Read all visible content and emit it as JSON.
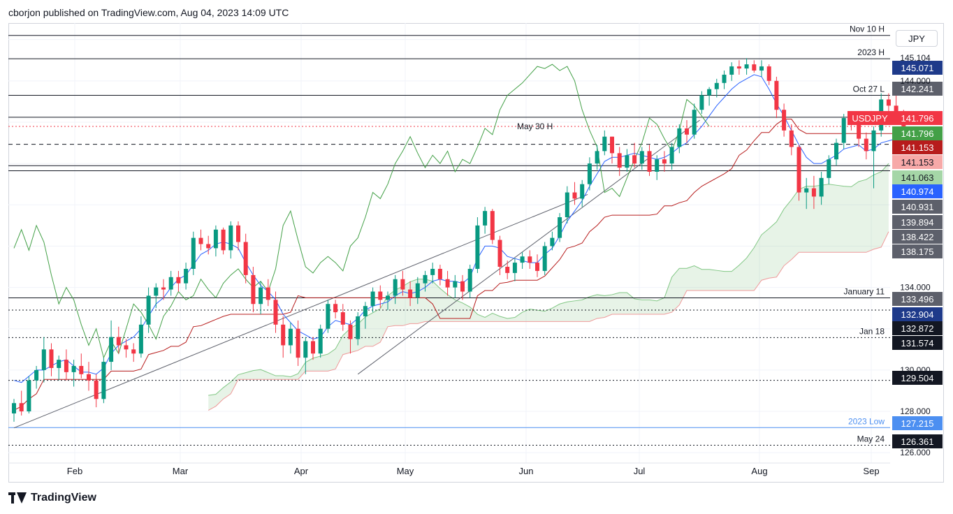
{
  "header": {
    "published": "cborjon published on TradingView.com, Aug 04, 2023 14:09 UTC"
  },
  "footer": {
    "brand": "TradingView"
  },
  "currency": "JPY",
  "colors": {
    "up": "#089981",
    "down": "#f23645",
    "kijun": "#b71c1c",
    "tenkan": "#2962ff",
    "lagging": "#43a047",
    "cloud_up": "#43a047",
    "cloud_down": "#f23645"
  },
  "chart_data": {
    "type": "candlestick",
    "symbol": "USDJPY",
    "timeframe": "daily",
    "indicator": "Ichimoku Cloud",
    "ylim": [
      125.5,
      146.8
    ],
    "x_tick_labels": [
      "Feb",
      "Mar",
      "Apr",
      "May",
      "Jun",
      "Jul",
      "Aug",
      "Sep"
    ],
    "y_tick_labels": [
      128.0,
      130.0,
      134.0,
      144.0
    ],
    "y_partial_labels": [
      {
        "value": 145.104,
        "label": "145.104"
      },
      {
        "value": 126.0,
        "label": "126.000"
      }
    ],
    "price_labels": [
      {
        "label": "145.071",
        "bg": "#1e3a8a",
        "fg": "#ffffff",
        "value": 145.071
      },
      {
        "label": "142.241",
        "bg": "#5d606b",
        "fg": "#ffffff",
        "value": 142.241
      },
      {
        "label": "141.796",
        "bg": "#f23645",
        "fg": "#ffffff",
        "value": 141.796,
        "tag": "USDJPY"
      },
      {
        "label": "141.796",
        "bg": "#43a047",
        "fg": "#ffffff",
        "value": 141.796
      },
      {
        "label": "141.153",
        "bg": "#b71c1c",
        "fg": "#ffffff",
        "value": 141.153
      },
      {
        "label": "141.153",
        "bg": "#f7a9a8",
        "fg": "#131722",
        "value": 141.153
      },
      {
        "label": "141.063",
        "bg": "#a5d6a7",
        "fg": "#131722",
        "value": 141.063
      },
      {
        "label": "140.974",
        "bg": "#2962ff",
        "fg": "#ffffff",
        "value": 140.974
      },
      {
        "label": "140.931",
        "bg": "#5d606b",
        "fg": "#ffffff",
        "value": 140.931
      },
      {
        "label": "139.894",
        "bg": "#5d606b",
        "fg": "#ffffff",
        "value": 139.894
      },
      {
        "label": "138.422",
        "bg": "#5d606b",
        "fg": "#ffffff",
        "value": 138.422
      },
      {
        "label": "138.175",
        "bg": "#5d606b",
        "fg": "#ffffff",
        "value": 138.175
      },
      {
        "label": "133.496",
        "bg": "#5d606b",
        "fg": "#ffffff",
        "value": 133.496
      },
      {
        "label": "132.904",
        "bg": "#1e3a8a",
        "fg": "#ffffff",
        "value": 132.904
      },
      {
        "label": "132.872",
        "bg": "#131722",
        "fg": "#ffffff",
        "value": 132.872
      },
      {
        "label": "131.574",
        "bg": "#131722",
        "fg": "#ffffff",
        "value": 131.574
      },
      {
        "label": "129.504",
        "bg": "#131722",
        "fg": "#ffffff",
        "value": 129.504
      },
      {
        "label": "127.215",
        "bg": "#4c8ff1",
        "fg": "#ffffff",
        "value": 127.215
      },
      {
        "label": "126.361",
        "bg": "#131722",
        "fg": "#ffffff",
        "value": 126.361
      }
    ],
    "horizontal_lines": [
      {
        "value": 146.2,
        "label": "Nov 10 H",
        "style": "solid",
        "color": "#131722"
      },
      {
        "value": 145.071,
        "label": "2023 H",
        "style": "solid",
        "color": "#131722"
      },
      {
        "value": 143.3,
        "label": "Oct 27 L",
        "style": "solid",
        "color": "#131722"
      },
      {
        "value": 141.796,
        "label": "",
        "style": "dotted",
        "color": "#f23645"
      },
      {
        "value": 142.241,
        "label": "",
        "style": "solid",
        "color": "#131722"
      },
      {
        "value": 140.931,
        "label": "",
        "style": "dashed",
        "color": "#131722"
      },
      {
        "value": 139.894,
        "label": "",
        "style": "solid",
        "color": "#131722"
      },
      {
        "value": 139.65,
        "label": "",
        "style": "solid",
        "color": "#131722"
      },
      {
        "value": 133.496,
        "label": "January 11",
        "style": "solid",
        "color": "#131722"
      },
      {
        "value": 132.904,
        "label": "",
        "style": "dotted",
        "color": "#131722"
      },
      {
        "value": 131.574,
        "label": "Jan 18",
        "style": "dotted",
        "color": "#131722"
      },
      {
        "value": 129.504,
        "label": "",
        "style": "dotted",
        "color": "#131722"
      },
      {
        "value": 127.215,
        "label": "2023 Low",
        "style": "solid",
        "color": "#4c8ff1"
      },
      {
        "value": 126.361,
        "label": "May 24",
        "style": "dotted",
        "color": "#131722"
      }
    ],
    "annotations": [
      {
        "label": "May 30 H",
        "value": 141.6
      }
    ],
    "trendlines": [
      {
        "from": [
          0,
          127.2
        ],
        "to": [
          73,
          138.4
        ]
      },
      {
        "from": [
          46,
          129.8
        ],
        "to": [
          88,
          142.0
        ]
      }
    ],
    "candles": [
      [
        127.9,
        128.6,
        127.5,
        128.4
      ],
      [
        128.4,
        129.0,
        127.8,
        128.0
      ],
      [
        128.0,
        129.7,
        127.9,
        129.5
      ],
      [
        129.5,
        130.2,
        129.1,
        130.0
      ],
      [
        130.0,
        131.6,
        129.4,
        131.0
      ],
      [
        131.0,
        131.3,
        129.7,
        130.1
      ],
      [
        130.1,
        130.7,
        129.5,
        130.5
      ],
      [
        130.5,
        131.0,
        129.5,
        129.9
      ],
      [
        129.9,
        130.5,
        129.2,
        130.2
      ],
      [
        130.2,
        130.8,
        129.6,
        129.8
      ],
      [
        129.8,
        130.4,
        129.0,
        129.5
      ],
      [
        129.5,
        129.8,
        128.2,
        128.6
      ],
      [
        128.6,
        130.6,
        128.4,
        130.4
      ],
      [
        130.4,
        132.4,
        130.0,
        131.6
      ],
      [
        131.6,
        132.1,
        130.8,
        131.2
      ],
      [
        131.2,
        131.5,
        130.6,
        131.0
      ],
      [
        131.0,
        131.3,
        130.4,
        130.8
      ],
      [
        130.8,
        132.6,
        130.6,
        132.2
      ],
      [
        132.2,
        134.0,
        131.8,
        133.6
      ],
      [
        133.6,
        134.2,
        133.0,
        134.0
      ],
      [
        134.0,
        134.4,
        133.4,
        133.9
      ],
      [
        133.9,
        134.8,
        133.6,
        134.5
      ],
      [
        134.5,
        134.8,
        133.8,
        134.2
      ],
      [
        134.2,
        135.2,
        133.9,
        134.9
      ],
      [
        134.9,
        136.7,
        134.6,
        136.4
      ],
      [
        136.4,
        136.8,
        135.8,
        136.1
      ],
      [
        136.1,
        136.5,
        135.6,
        135.9
      ],
      [
        135.9,
        137.0,
        135.5,
        136.8
      ],
      [
        136.8,
        136.9,
        135.6,
        135.8
      ],
      [
        135.8,
        137.2,
        135.4,
        137.0
      ],
      [
        137.0,
        137.2,
        135.8,
        136.2
      ],
      [
        136.2,
        136.6,
        134.2,
        134.6
      ],
      [
        134.6,
        135.0,
        132.8,
        133.2
      ],
      [
        133.2,
        134.3,
        132.7,
        134.0
      ],
      [
        134.0,
        134.4,
        133.1,
        133.4
      ],
      [
        133.4,
        133.8,
        131.8,
        132.2
      ],
      [
        132.2,
        132.6,
        130.6,
        131.2
      ],
      [
        131.2,
        132.3,
        130.8,
        132.0
      ],
      [
        132.0,
        132.4,
        130.2,
        130.6
      ],
      [
        130.6,
        131.6,
        129.8,
        131.4
      ],
      [
        131.4,
        131.6,
        130.5,
        130.8
      ],
      [
        130.8,
        132.2,
        130.6,
        132.0
      ],
      [
        132.0,
        133.4,
        131.8,
        133.2
      ],
      [
        133.2,
        133.4,
        132.5,
        132.8
      ],
      [
        132.8,
        133.2,
        131.9,
        132.2
      ],
      [
        132.2,
        132.4,
        130.8,
        131.5
      ],
      [
        131.5,
        132.8,
        131.2,
        132.6
      ],
      [
        132.6,
        133.3,
        132.0,
        133.1
      ],
      [
        133.1,
        134.0,
        132.8,
        133.8
      ],
      [
        133.8,
        134.1,
        133.0,
        133.4
      ],
      [
        133.4,
        133.8,
        132.9,
        133.6
      ],
      [
        133.6,
        134.6,
        133.2,
        134.4
      ],
      [
        134.4,
        134.8,
        133.6,
        133.9
      ],
      [
        133.9,
        134.3,
        133.1,
        133.5
      ],
      [
        133.5,
        134.5,
        133.2,
        134.2
      ],
      [
        134.2,
        134.8,
        133.8,
        134.6
      ],
      [
        134.6,
        135.2,
        134.2,
        134.9
      ],
      [
        134.9,
        135.1,
        134.1,
        134.4
      ],
      [
        134.4,
        134.8,
        133.6,
        134.0
      ],
      [
        134.0,
        134.6,
        133.5,
        134.3
      ],
      [
        134.3,
        134.6,
        133.4,
        133.8
      ],
      [
        133.8,
        135.1,
        133.5,
        134.9
      ],
      [
        134.9,
        137.4,
        134.7,
        137.0
      ],
      [
        137.0,
        137.9,
        136.6,
        137.7
      ],
      [
        137.7,
        137.8,
        136.1,
        136.3
      ],
      [
        136.3,
        136.5,
        134.6,
        135.0
      ],
      [
        135.0,
        135.3,
        134.4,
        134.7
      ],
      [
        134.7,
        135.4,
        134.3,
        135.2
      ],
      [
        135.2,
        135.7,
        134.9,
        135.5
      ],
      [
        135.5,
        135.8,
        134.9,
        135.2
      ],
      [
        135.2,
        135.6,
        134.5,
        134.8
      ],
      [
        134.8,
        136.2,
        134.6,
        136.0
      ],
      [
        136.0,
        136.7,
        135.8,
        136.4
      ],
      [
        136.4,
        137.6,
        136.2,
        137.4
      ],
      [
        137.4,
        138.9,
        137.1,
        138.6
      ],
      [
        138.6,
        139.1,
        138.0,
        138.3
      ],
      [
        138.3,
        139.2,
        137.9,
        139.0
      ],
      [
        139.0,
        140.3,
        138.7,
        140.0
      ],
      [
        140.0,
        140.9,
        139.7,
        140.6
      ],
      [
        140.6,
        141.6,
        140.4,
        141.3
      ],
      [
        141.3,
        141.3,
        140.0,
        140.5
      ],
      [
        140.5,
        140.8,
        139.4,
        139.8
      ],
      [
        139.8,
        140.7,
        139.6,
        140.4
      ],
      [
        140.4,
        141.0,
        139.8,
        140.0
      ],
      [
        140.0,
        140.8,
        139.7,
        140.6
      ],
      [
        140.6,
        140.9,
        139.4,
        139.6
      ],
      [
        139.6,
        140.4,
        139.2,
        140.2
      ],
      [
        140.2,
        140.6,
        139.6,
        140.0
      ],
      [
        140.0,
        141.0,
        139.7,
        140.8
      ],
      [
        140.8,
        141.9,
        140.5,
        141.7
      ],
      [
        141.7,
        142.1,
        141.0,
        141.4
      ],
      [
        141.4,
        142.9,
        141.2,
        142.6
      ],
      [
        142.6,
        143.5,
        142.4,
        143.3
      ],
      [
        143.3,
        143.7,
        142.8,
        143.6
      ],
      [
        143.6,
        144.1,
        143.2,
        143.9
      ],
      [
        143.9,
        144.5,
        143.6,
        144.3
      ],
      [
        144.3,
        144.9,
        144.0,
        144.7
      ],
      [
        144.7,
        145.0,
        144.3,
        144.6
      ],
      [
        144.6,
        145.1,
        144.3,
        144.8
      ],
      [
        144.8,
        145.0,
        144.4,
        144.5
      ],
      [
        144.5,
        145.0,
        144.2,
        144.7
      ],
      [
        144.7,
        144.8,
        143.8,
        144.0
      ],
      [
        144.0,
        144.2,
        142.2,
        142.6
      ],
      [
        142.6,
        142.9,
        141.3,
        141.6
      ],
      [
        141.6,
        141.9,
        140.4,
        140.8
      ],
      [
        140.8,
        140.9,
        138.2,
        138.6
      ],
      [
        138.6,
        139.3,
        137.8,
        138.8
      ],
      [
        138.8,
        139.4,
        137.8,
        138.4
      ],
      [
        138.4,
        139.6,
        138.0,
        139.3
      ],
      [
        139.3,
        140.4,
        139.0,
        140.2
      ],
      [
        140.2,
        141.2,
        139.9,
        141.0
      ],
      [
        141.0,
        142.4,
        140.7,
        142.2
      ],
      [
        142.2,
        142.5,
        141.6,
        141.9
      ],
      [
        141.9,
        142.1,
        140.8,
        141.2
      ],
      [
        141.2,
        141.5,
        140.2,
        140.6
      ],
      [
        140.6,
        141.8,
        138.8,
        141.6
      ],
      [
        141.6,
        143.4,
        141.3,
        143.1
      ],
      [
        143.1,
        143.4,
        142.4,
        142.8
      ],
      [
        142.8,
        143.6,
        141.9,
        142.3
      ],
      [
        142.3,
        142.6,
        141.6,
        141.8
      ]
    ],
    "tenkan_sen": [
      129.5,
      129.4,
      129.7,
      130.0,
      130.0,
      130.2,
      130.4,
      130.5,
      130.2,
      129.9,
      129.9,
      129.8,
      130.1,
      130.8,
      131.2,
      131.4,
      131.6,
      132.0,
      132.6,
      133.2,
      133.5,
      134.0,
      134.4,
      134.6,
      135.1,
      135.6,
      135.8,
      136.1,
      136.2,
      136.1,
      135.9,
      135.2,
      134.6,
      134.1,
      133.8,
      133.4,
      132.7,
      132.3,
      131.9,
      131.7,
      131.5,
      131.6,
      132.1,
      132.4,
      132.3,
      132.2,
      132.5,
      132.9,
      133.1,
      133.2,
      133.3,
      133.6,
      133.8,
      133.7,
      133.8,
      134.0,
      134.3,
      134.4,
      134.3,
      134.3,
      134.2,
      134.5,
      135.4,
      136.0,
      136.0,
      135.9,
      135.5,
      135.4,
      135.3,
      135.2,
      135.2,
      135.6,
      135.9,
      136.5,
      137.2,
      137.7,
      138.2,
      138.9,
      139.5,
      140.1,
      140.3,
      140.3,
      140.4,
      140.5,
      140.4,
      140.3,
      140.2,
      140.3,
      140.5,
      140.8,
      141.0,
      141.4,
      141.8,
      142.3,
      142.8,
      143.2,
      143.6,
      143.9,
      144.1,
      144.3,
      144.2,
      143.6,
      142.9,
      142.3,
      141.6,
      140.9,
      140.3,
      140.0,
      140.0,
      140.2,
      140.4,
      140.7,
      140.8,
      140.9,
      140.6,
      140.7,
      141.0,
      141.1,
      141.2,
      141.1
    ]
  }
}
